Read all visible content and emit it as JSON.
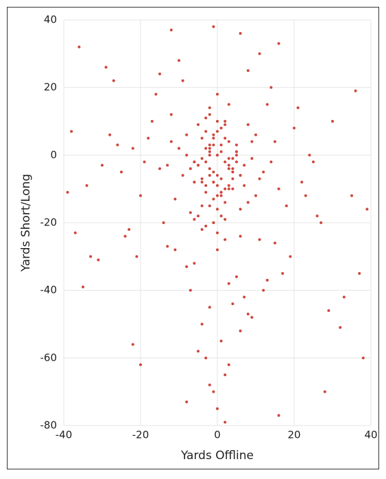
{
  "chart_data": {
    "type": "scatter",
    "x_label": "Yards Offline",
    "y_label": "Yards Short/Long",
    "color": "#d0463c",
    "grid": true,
    "xlim": [
      -40,
      40
    ],
    "ylim": [
      -80,
      40
    ],
    "xticks": [
      -40,
      -20,
      0,
      20,
      40
    ],
    "yticks": [
      40,
      20,
      0,
      -20,
      -40,
      -60,
      -80
    ],
    "x": [
      -3,
      2,
      -6,
      5,
      0,
      -1,
      4,
      -8,
      7,
      -4,
      1,
      3,
      -2,
      6,
      -10,
      9,
      -5,
      2,
      -7,
      0,
      11,
      -12,
      4,
      -3,
      8,
      -1,
      5,
      -9,
      3,
      -6,
      1,
      10,
      -4,
      7,
      -2,
      -13,
      6,
      0,
      -5,
      12,
      2,
      -8,
      4,
      -1,
      9,
      -11,
      3,
      -3,
      14,
      -6,
      0,
      5,
      -15,
      8,
      -2,
      1,
      -7,
      6,
      -4,
      10,
      -18,
      16,
      -22,
      20,
      -14,
      13,
      -25,
      18,
      -9,
      24,
      -17,
      11,
      -20,
      15,
      -28,
      22,
      -12,
      19,
      -30,
      26,
      -16,
      8,
      -23,
      17,
      -11,
      21,
      -19,
      14,
      -26,
      12,
      -6,
      3,
      -2,
      7,
      -4,
      1,
      5,
      -3,
      9,
      -8,
      2,
      -1,
      6,
      -5,
      4,
      0,
      -7,
      3,
      -2,
      8,
      -10,
      11,
      -13,
      15,
      -15,
      13,
      -21,
      23,
      -24,
      27,
      -38,
      -36,
      -39,
      -33,
      38,
      39,
      36,
      37,
      -31,
      33,
      -35,
      35,
      -29,
      30,
      -22,
      -20,
      16,
      28,
      -8,
      -1,
      6,
      16,
      -37,
      32,
      -34,
      -27,
      25,
      29,
      -12,
      2,
      0,
      -2,
      1,
      -4,
      3,
      -1,
      2,
      -3,
      4,
      -5,
      0,
      1,
      -2,
      3,
      -1,
      5,
      -6,
      2,
      -3,
      0,
      -1,
      4,
      -2,
      1,
      -4,
      2,
      0,
      -3,
      3,
      -1,
      6,
      -2,
      -5,
      1,
      0,
      2,
      -4,
      3,
      -1,
      -2,
      5,
      0,
      -3,
      1,
      -6,
      4,
      -1,
      2,
      0,
      -2
    ],
    "y": [
      -2,
      5,
      -8,
      1,
      -12,
      3,
      -5,
      0,
      -3,
      -15,
      8,
      -9,
      12,
      -6,
      2,
      -1,
      -18,
      10,
      -4,
      0,
      -7,
      4,
      -10,
      7,
      -14,
      -20,
      3,
      -6,
      15,
      -2,
      -11,
      6,
      -22,
      -9,
      1,
      -3,
      -16,
      18,
      9,
      -5,
      -25,
      6,
      -1,
      -8,
      4,
      -13,
      -3,
      11,
      -2,
      -19,
      -28,
      0,
      -4,
      9,
      14,
      -7,
      -17,
      -24,
      5,
      -12,
      5,
      -10,
      2,
      8,
      -20,
      15,
      -5,
      -15,
      22,
      0,
      10,
      -25,
      -12,
      4,
      6,
      -8,
      12,
      -30,
      -3,
      -18,
      18,
      25,
      -22,
      -35,
      -28,
      14,
      -2,
      20,
      3,
      -40,
      -32,
      -38,
      -45,
      -42,
      -50,
      -55,
      -36,
      -60,
      -48,
      -33,
      -65,
      -70,
      -52,
      -58,
      -44,
      -75,
      -40,
      -62,
      -68,
      -47,
      28,
      30,
      -27,
      -26,
      24,
      -37,
      -30,
      -12,
      -24,
      -20,
      7,
      32,
      -11,
      -30,
      -60,
      -16,
      19,
      -35,
      -31,
      -42,
      -39,
      -12,
      26,
      10,
      -56,
      -62,
      -77,
      -70,
      -73,
      38,
      36,
      33,
      -23,
      -51,
      -9,
      22,
      -2,
      -46,
      37,
      -79,
      0,
      -4,
      3,
      -7,
      -1,
      6,
      -10,
      2,
      -5,
      -3,
      -9,
      1,
      -6,
      4,
      -13,
      -2,
      -8,
      9,
      -11,
      -16,
      -5,
      -7,
      3,
      -12,
      -1,
      -14,
      7,
      -9,
      -4,
      -20,
      -6,
      0,
      -3,
      -18,
      10,
      -2,
      -8,
      -10,
      5,
      -15,
      1,
      -6,
      -21,
      -11,
      -2,
      -4,
      -8,
      -19,
      -23,
      2
    ]
  }
}
